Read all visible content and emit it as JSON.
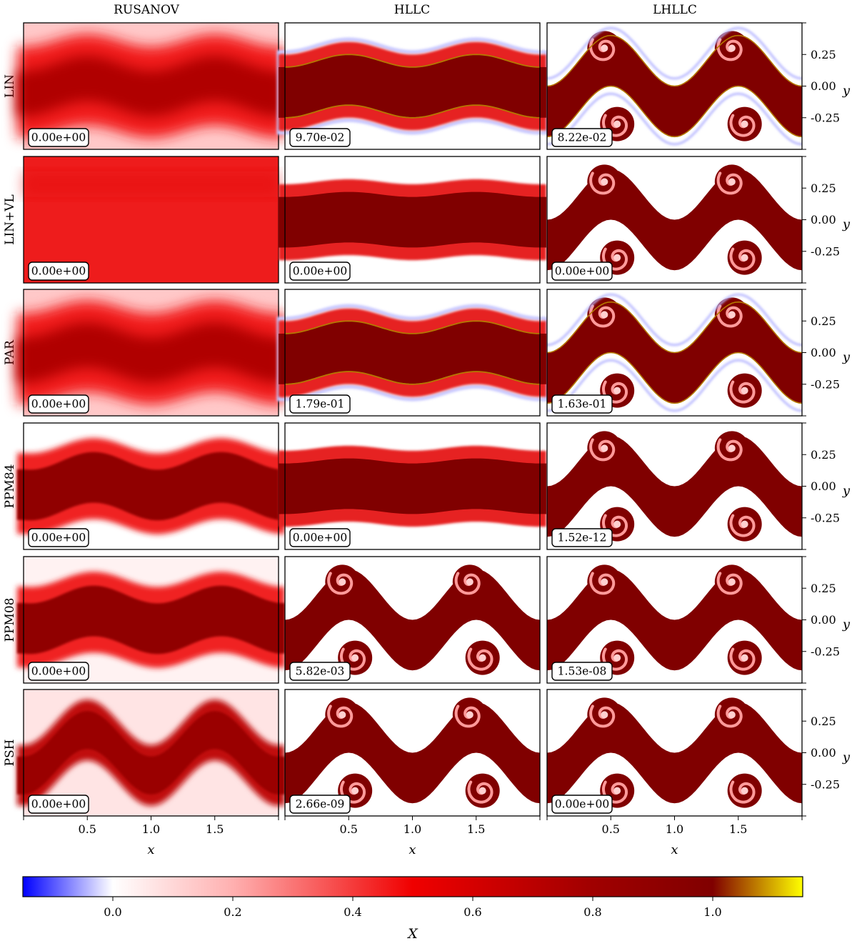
{
  "chart_data": {
    "type": "heatmap",
    "columns": [
      "RUSANOV",
      "HLLC",
      "LHLLC"
    ],
    "rows": [
      "LIN",
      "LIN+VL",
      "PAR",
      "PPM84",
      "PPM08",
      "PSH"
    ],
    "panel_annotations": [
      [
        "0.00e+00",
        "9.70e-02",
        "8.22e-02"
      ],
      [
        "0.00e+00",
        "0.00e+00",
        "0.00e+00"
      ],
      [
        "0.00e+00",
        "1.79e-01",
        "1.63e-01"
      ],
      [
        "0.00e+00",
        "0.00e+00",
        "1.52e-12"
      ],
      [
        "0.00e+00",
        "5.82e-03",
        "1.53e-08"
      ],
      [
        "0.00e+00",
        "2.66e-09",
        "0.00e+00"
      ]
    ],
    "panel_styles": [
      [
        "diffuse_wave",
        "sharp_wave",
        "vortex"
      ],
      [
        "flat",
        "flat_band",
        "vortex_clean"
      ],
      [
        "diffuse_wave",
        "sharp_wave",
        "vortex"
      ],
      [
        "rough_wave",
        "flat_band",
        "vortex_clean"
      ],
      [
        "rough_diffuse",
        "blocky_vortex",
        "vortex_clean"
      ],
      [
        "diffuse_vortex",
        "vortex_clean",
        "vortex_clean"
      ]
    ],
    "xlabel": "x",
    "ylabel": "y",
    "xlim": [
      0,
      2
    ],
    "ylim": [
      -0.5,
      0.5
    ],
    "x_ticks": [
      0.5,
      1.0,
      1.5
    ],
    "x_tick_labels": [
      "0.5",
      "1.0",
      "1.5"
    ],
    "y_ticks": [
      0.25,
      0.0,
      -0.25
    ],
    "y_tick_labels": [
      "0.25",
      "0.00",
      "-0.25"
    ],
    "colorbar": {
      "label": "X",
      "range": [
        -0.15,
        1.15
      ],
      "ticks": [
        0.0,
        0.2,
        0.4,
        0.6,
        0.8,
        1.0
      ],
      "tick_labels": [
        "0.0",
        "0.2",
        "0.4",
        "0.6",
        "0.8",
        "1.0"
      ],
      "colormap": [
        [
          -0.15,
          "#0000ff"
        ],
        [
          0.0,
          "#ffffff"
        ],
        [
          0.2,
          "#ffb0b0"
        ],
        [
          0.5,
          "#f00000"
        ],
        [
          0.8,
          "#a00000"
        ],
        [
          1.0,
          "#800000"
        ],
        [
          1.15,
          "#ffff00"
        ]
      ]
    }
  },
  "colors": {
    "dark": "#800000",
    "light": "#ffffff",
    "flat_fill": "#ee1c1c"
  }
}
